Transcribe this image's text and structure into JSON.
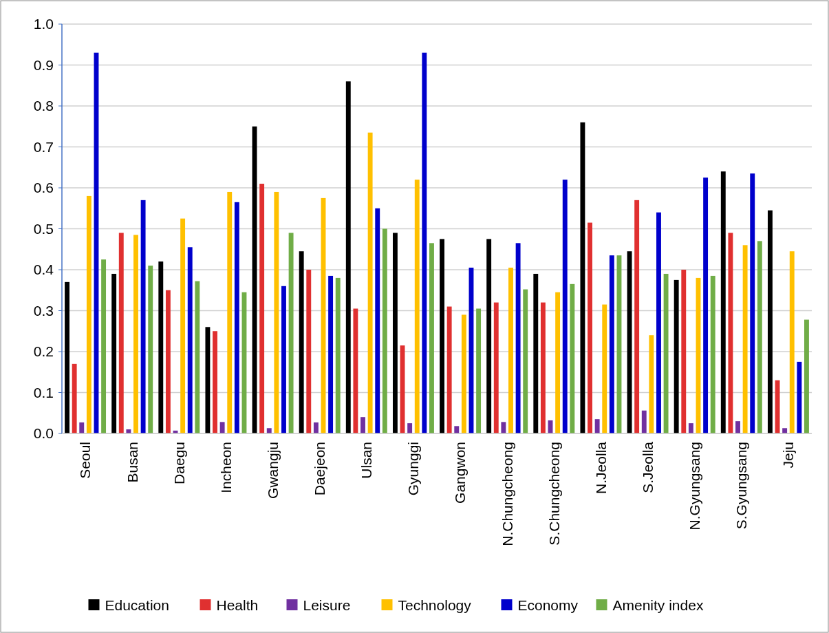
{
  "chart_data": {
    "type": "bar",
    "categories": [
      "Seoul",
      "Busan",
      "Daegu",
      "Incheon",
      "Gwangju",
      "Daejeon",
      "Ulsan",
      "Gyunggi",
      "Gangwon",
      "N.Chungcheong",
      "S.Chungcheong",
      "N.Jeolla",
      "S.Jeolla",
      "N.Gyungsang",
      "S.Gyungsang",
      "Jeju"
    ],
    "series": [
      {
        "name": "Education",
        "color": "#000000",
        "values": [
          0.37,
          0.39,
          0.42,
          0.26,
          0.75,
          0.445,
          0.86,
          0.49,
          0.475,
          0.475,
          0.39,
          0.76,
          0.445,
          0.375,
          0.64,
          0.545
        ]
      },
      {
        "name": "Health",
        "color": "#e03030",
        "values": [
          0.17,
          0.49,
          0.35,
          0.25,
          0.61,
          0.4,
          0.305,
          0.215,
          0.31,
          0.32,
          0.32,
          0.515,
          0.57,
          0.4,
          0.49,
          0.13
        ]
      },
      {
        "name": "Leisure",
        "color": "#7030a0",
        "values": [
          0.027,
          0.01,
          0.007,
          0.028,
          0.013,
          0.027,
          0.04,
          0.025,
          0.018,
          0.028,
          0.032,
          0.035,
          0.056,
          0.025,
          0.03,
          0.013
        ]
      },
      {
        "name": "Technology",
        "color": "#ffc000",
        "values": [
          0.58,
          0.485,
          0.525,
          0.59,
          0.59,
          0.575,
          0.735,
          0.62,
          0.29,
          0.405,
          0.345,
          0.315,
          0.24,
          0.38,
          0.46,
          0.445
        ]
      },
      {
        "name": "Economy",
        "color": "#0000cc",
        "values": [
          0.93,
          0.57,
          0.455,
          0.565,
          0.36,
          0.385,
          0.55,
          0.93,
          0.405,
          0.465,
          0.62,
          0.435,
          0.54,
          0.625,
          0.635,
          0.175
        ]
      },
      {
        "name": "Amenity index",
        "color": "#70ad47",
        "values": [
          0.425,
          0.41,
          0.372,
          0.345,
          0.49,
          0.38,
          0.5,
          0.465,
          0.305,
          0.352,
          0.365,
          0.435,
          0.39,
          0.385,
          0.47,
          0.278
        ]
      }
    ],
    "ylim": [
      0,
      1
    ],
    "yticks": [
      {
        "value": 0,
        "label": "0.0"
      },
      0.1,
      0.2,
      0.3,
      0.4,
      0.5,
      0.6,
      0.7,
      0.8,
      0.9,
      {
        "value": 1,
        "label": "1.0"
      }
    ],
    "grid": "y",
    "legend": "bottom"
  }
}
